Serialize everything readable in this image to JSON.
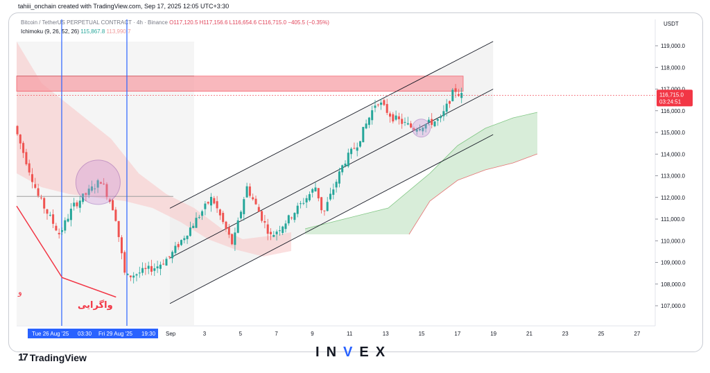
{
  "header": {
    "credit": "tahiii_onchain created with TradingView.com, Sep 17, 2025 12:05 UTC+3:30",
    "symbol": "Bitcoin / TetherUS PERPETUAL CONTRACT · 4h · Binance",
    "ohlc": "O117,120.5  H117,156.6  L116,654.6  C116,715.0  −405.5 (−0.35%)",
    "indicator": "Ichimoku (9, 26, 52, 26)",
    "ind_val1": "115,867.8",
    "ind_val2": "113,990.7",
    "currency": "USDT"
  },
  "price_badge": {
    "price": "116,715.0",
    "countdown": "03:24:51",
    "color": "#f23645"
  },
  "annotation_text": "واگرایی",
  "annotation_left": "و",
  "x_highlight": [
    "Tue 26 Aug '25",
    "03:30",
    "Fri 29 Aug '25",
    "19:30"
  ],
  "footer": {
    "brand": "TradingView",
    "logo_glyph": "17",
    "watermark": [
      "I",
      "N",
      "V",
      "E",
      "X"
    ]
  },
  "colors": {
    "up": "#26a69a",
    "down": "#ef5350",
    "cloud_green": "#c8e6c9",
    "cloud_red": "#f8c9c9",
    "zone": "#f7a1a8",
    "line": "#131722",
    "vline": "#2962ff",
    "diverge": "#f23645"
  },
  "chart_data": {
    "type": "candlestick",
    "ylim": [
      106000,
      120000
    ],
    "y_ticks": [
      107000,
      108000,
      109000,
      110000,
      111000,
      112000,
      113000,
      114000,
      115000,
      116000,
      117000,
      118000,
      119000
    ],
    "y_tick_labels": [
      "107,000.0",
      "108,000.0",
      "109,000.0",
      "110,000.0",
      "111,000.0",
      "112,000.0",
      "113,000.0",
      "114,000.0",
      "115,000.0",
      "116,000.0",
      "117,000.0",
      "118,000.0",
      "119,000.0"
    ],
    "x_ticks": [
      "Sep",
      "3",
      "5",
      "7",
      "9",
      "11",
      "13",
      "15",
      "17",
      "19",
      "21",
      "23",
      "25",
      "27"
    ],
    "resistance_zone": [
      116900,
      117600
    ],
    "horizontal_levels": [
      117600,
      112050
    ],
    "channel": {
      "upper": [
        [
          "Sep 1",
          111500
        ],
        [
          "Sep 19",
          119200
        ]
      ],
      "middle": [
        [
          "Sep 1",
          109200
        ],
        [
          "Sep 19",
          117000
        ]
      ],
      "lower": [
        [
          "Sep 1",
          107100
        ],
        [
          "Sep 19",
          114900
        ]
      ]
    },
    "divergence_line": [
      [
        "Aug 23",
        111600
      ],
      [
        "Aug 26",
        108300
      ],
      [
        "Aug 29",
        107400
      ]
    ],
    "circles": [
      {
        "date": "Aug 28",
        "price": 112700
      },
      {
        "date": "Sep 15",
        "price": 115200
      }
    ],
    "last_price": 116715.0
  }
}
